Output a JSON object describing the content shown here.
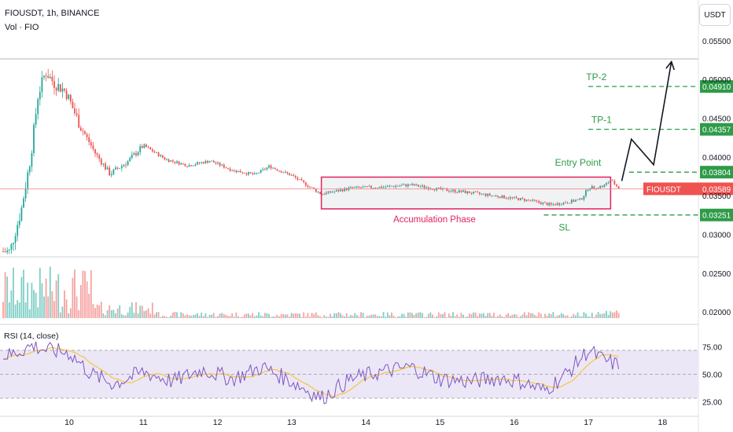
{
  "header": {
    "symbol_line": "FIOUSDT, 1h, BINANCE",
    "volume_label": "Vol · FIO",
    "currency_button": "USDT"
  },
  "colors": {
    "up": "#26a69a",
    "down": "#ef5350",
    "up_volume": "#7fcfc6",
    "down_volume": "#f5a3a1",
    "level": "#2e9b48",
    "zone": "#e0245e",
    "rsi_line": "#7e57c2",
    "rsi_ma": "#f2c94c",
    "rsi_band": "#ece7f7"
  },
  "chart_data": {
    "type": "candlestick",
    "symbol": "FIOUSDT",
    "timeframe": "1h",
    "exchange": "BINANCE",
    "x_ticks": [
      "10",
      "11",
      "12",
      "13",
      "14",
      "15",
      "16",
      "17",
      "18"
    ],
    "price_ticks": [
      "0.05500",
      "0.05000",
      "0.04500",
      "0.04000",
      "0.03500",
      "0.03000",
      "0.02500",
      "0.02000"
    ],
    "price_range": [
      0.0195,
      0.0555
    ],
    "last_price_label": "FIOUSDT",
    "last_price": "0.03589",
    "levels": [
      {
        "id": "tp2",
        "label": "TP-2",
        "value": "0.04910",
        "price": 0.0491
      },
      {
        "id": "tp1",
        "label": "TP-1",
        "value": "0.04357",
        "price": 0.04357
      },
      {
        "id": "entry",
        "label": "Entry Point",
        "value": "0.03804",
        "price": 0.03804
      },
      {
        "id": "sl",
        "label": "SL",
        "value": "0.03251",
        "price": 0.03251
      }
    ],
    "zone": {
      "label": "Accumulation Phase",
      "price_low": 0.0333,
      "price_high": 0.0374,
      "start_day": 13.4,
      "end_day": 17.3
    },
    "projection": [
      {
        "day": 17.45,
        "price": 0.0369
      },
      {
        "day": 17.58,
        "price": 0.0423
      },
      {
        "day": 17.88,
        "price": 0.039
      },
      {
        "day": 18.12,
        "price": 0.0523
      }
    ],
    "price_path": [
      {
        "day": 9.2,
        "price": 0.0278
      },
      {
        "day": 9.35,
        "price": 0.033
      },
      {
        "day": 9.48,
        "price": 0.04
      },
      {
        "day": 9.58,
        "price": 0.048
      },
      {
        "day": 9.68,
        "price": 0.051
      },
      {
        "day": 9.8,
        "price": 0.0495
      },
      {
        "day": 9.95,
        "price": 0.0485
      },
      {
        "day": 10.15,
        "price": 0.044
      },
      {
        "day": 10.35,
        "price": 0.0405
      },
      {
        "day": 10.55,
        "price": 0.0378
      },
      {
        "day": 10.8,
        "price": 0.0395
      },
      {
        "day": 11.0,
        "price": 0.0415
      },
      {
        "day": 11.3,
        "price": 0.0397
      },
      {
        "day": 11.6,
        "price": 0.0389
      },
      {
        "day": 11.9,
        "price": 0.0395
      },
      {
        "day": 12.2,
        "price": 0.0383
      },
      {
        "day": 12.5,
        "price": 0.0377
      },
      {
        "day": 12.7,
        "price": 0.0388
      },
      {
        "day": 13.0,
        "price": 0.0376
      },
      {
        "day": 13.4,
        "price": 0.0352
      },
      {
        "day": 13.8,
        "price": 0.036
      },
      {
        "day": 14.2,
        "price": 0.0361
      },
      {
        "day": 14.6,
        "price": 0.0364
      },
      {
        "day": 15.0,
        "price": 0.0358
      },
      {
        "day": 15.4,
        "price": 0.0354
      },
      {
        "day": 15.8,
        "price": 0.0349
      },
      {
        "day": 16.2,
        "price": 0.0344
      },
      {
        "day": 16.5,
        "price": 0.0338
      },
      {
        "day": 16.9,
        "price": 0.0345
      },
      {
        "day": 17.0,
        "price": 0.036
      },
      {
        "day": 17.2,
        "price": 0.0362
      },
      {
        "day": 17.3,
        "price": 0.037
      },
      {
        "day": 17.42,
        "price": 0.0359
      }
    ],
    "rsi": {
      "label": "RSI (14, close)",
      "ticks": [
        "75.00",
        "50.00",
        "25.00"
      ],
      "upper": 70,
      "lower": 30,
      "path": [
        {
          "day": 9.2,
          "rsi": 66
        },
        {
          "day": 9.5,
          "rsi": 74
        },
        {
          "day": 9.7,
          "rsi": 70
        },
        {
          "day": 10.0,
          "rsi": 68
        },
        {
          "day": 10.3,
          "rsi": 50
        },
        {
          "day": 10.6,
          "rsi": 42
        },
        {
          "day": 11.0,
          "rsi": 52
        },
        {
          "day": 11.4,
          "rsi": 44
        },
        {
          "day": 11.8,
          "rsi": 54
        },
        {
          "day": 12.2,
          "rsi": 46
        },
        {
          "day": 12.6,
          "rsi": 56
        },
        {
          "day": 13.0,
          "rsi": 44
        },
        {
          "day": 13.4,
          "rsi": 30
        },
        {
          "day": 13.8,
          "rsi": 46
        },
        {
          "day": 14.2,
          "rsi": 52
        },
        {
          "day": 14.6,
          "rsi": 56
        },
        {
          "day": 15.0,
          "rsi": 46
        },
        {
          "day": 15.4,
          "rsi": 44
        },
        {
          "day": 15.8,
          "rsi": 47
        },
        {
          "day": 16.1,
          "rsi": 44
        },
        {
          "day": 16.4,
          "rsi": 36
        },
        {
          "day": 16.7,
          "rsi": 50
        },
        {
          "day": 17.0,
          "rsi": 70
        },
        {
          "day": 17.2,
          "rsi": 62
        },
        {
          "day": 17.42,
          "rsi": 57
        }
      ]
    }
  }
}
